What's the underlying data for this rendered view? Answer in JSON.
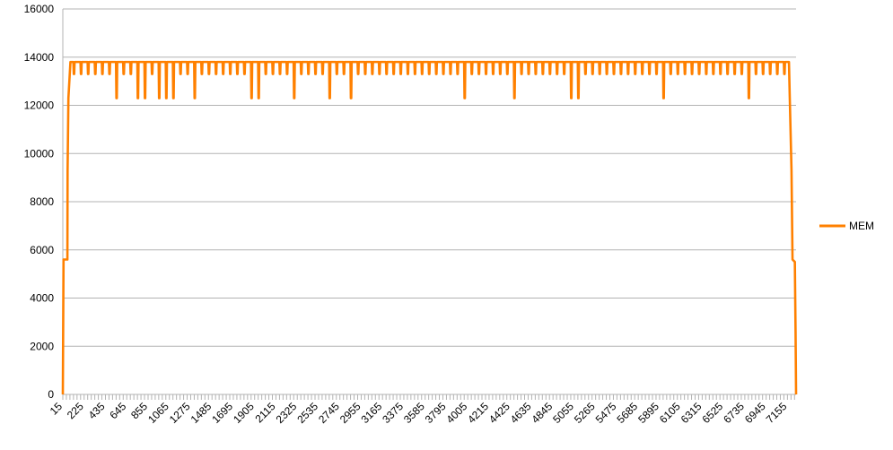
{
  "chart_data": {
    "type": "line",
    "title": "",
    "xlabel": "",
    "ylabel": "",
    "ylim": [
      0,
      16000
    ],
    "yticks": [
      0,
      2000,
      4000,
      6000,
      8000,
      10000,
      12000,
      14000,
      16000
    ],
    "x_range": [
      15,
      7240
    ],
    "x_tick_labels": [
      "15",
      "225",
      "435",
      "645",
      "855",
      "1065",
      "1275",
      "1485",
      "1695",
      "1905",
      "2115",
      "2325",
      "2535",
      "2745",
      "2955",
      "3165",
      "3375",
      "3585",
      "3795",
      "4005",
      "4215",
      "4425",
      "4635",
      "4845",
      "5055",
      "5265",
      "5475",
      "5685",
      "5895",
      "6105",
      "6315",
      "6525",
      "6735",
      "6945",
      "7155"
    ],
    "grid": "horizontal",
    "legend": "right",
    "series": [
      {
        "name": "MEM",
        "color": "#ff8000",
        "baseline": 13800,
        "shallow_dip": 13300,
        "deep_dip": 12300,
        "oscillation_period": 70,
        "deep_dips_at": [
          555,
          766,
          835,
          978,
          1045,
          1131,
          1288,
          1858,
          1930,
          2280,
          2625,
          2840,
          3965,
          4460,
          5020,
          5088,
          5940,
          6770
        ],
        "ramp_up": [
          [
            15,
            0
          ],
          [
            22,
            5600
          ],
          [
            60,
            5600
          ],
          [
            62,
            9300
          ],
          [
            70,
            12300
          ],
          [
            90,
            13800
          ]
        ],
        "ramp_down": [
          [
            7170,
            13800
          ],
          [
            7178,
            12300
          ],
          [
            7195,
            9300
          ],
          [
            7205,
            5600
          ],
          [
            7228,
            5500
          ],
          [
            7235,
            2600
          ],
          [
            7240,
            0
          ]
        ]
      }
    ]
  }
}
